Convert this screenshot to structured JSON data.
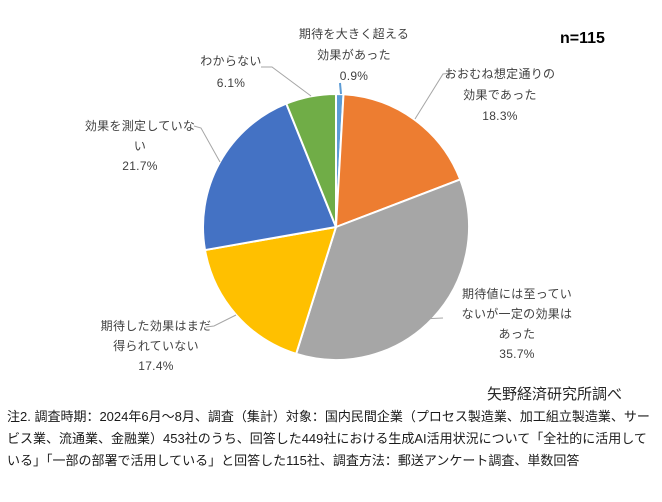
{
  "header": {
    "n_label": "n=115"
  },
  "chart_data": {
    "type": "pie",
    "title": "",
    "n_label": "n=115",
    "source_note": "矢野経済研究所調べ",
    "legend_position": "none",
    "labels_on_chart": true,
    "start_angle_deg": 0,
    "direction": "clockwise",
    "slices": [
      {
        "label": "期待を大きく超える効果があった",
        "pct": 0.9,
        "pct_text": "0.9%",
        "color": "#5B9BD5",
        "lines": [
          "期待を大きく超える",
          "効果があった"
        ]
      },
      {
        "label": "おおむね想定通りの効果であった",
        "pct": 18.3,
        "pct_text": "18.3%",
        "color": "#ED7D31",
        "lines": [
          "おおむね想定通りの",
          "効果であった"
        ]
      },
      {
        "label": "期待値には至っていないが一定の効果はあった",
        "pct": 35.7,
        "pct_text": "35.7%",
        "color": "#A6A6A6",
        "lines": [
          "期待値には至ってい",
          "ないが一定の効果は",
          "あった"
        ]
      },
      {
        "label": "期待した効果はまだ得られていない",
        "pct": 17.4,
        "pct_text": "17.4%",
        "color": "#FFC000",
        "lines": [
          "期待した効果はまだ",
          "得られていない"
        ]
      },
      {
        "label": "効果を測定していない",
        "pct": 21.7,
        "pct_text": "21.7%",
        "color": "#4472C4",
        "lines": [
          "効果を測定していな",
          "い"
        ]
      },
      {
        "label": "わからない",
        "pct": 6.1,
        "pct_text": "6.1%",
        "color": "#70AD47",
        "lines": [
          "わからない"
        ]
      }
    ]
  },
  "footnote": {
    "text": "注2. 調査時期：2024年6月～8月、調査（集計）対象：国内民間企業（プロセス製造業、加工組立製造業、サービス業、流通業、金融業）453社のうち、回答した449社における生成AI活用状況について「全社的に活用している」「一部の部署で活用している」と回答した115社、調査方法：郵送アンケート調査、単数回答"
  }
}
